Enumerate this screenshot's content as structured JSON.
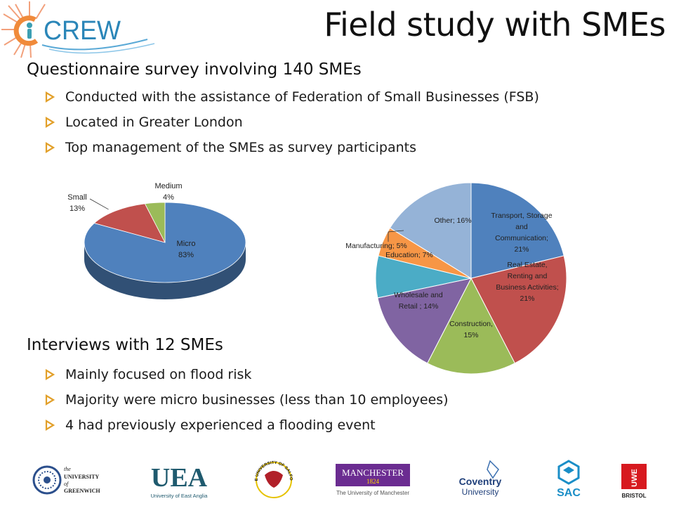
{
  "slide": {
    "title": "Field study with SMEs",
    "logo_text": "CREW"
  },
  "survey": {
    "heading": "Questionnaire survey involving 140 SMEs",
    "bullets": [
      "Conducted with the assistance of Federation of Small Businesses (FSB)",
      "Located in Greater London",
      "Top management of the SMEs as survey participants"
    ]
  },
  "interviews": {
    "heading": "Interviews with 12 SMEs",
    "bullets": [
      "Mainly focused on flood risk",
      "Majority were micro businesses (less than 10 employees)",
      "4 had previously experienced a flooding event"
    ]
  },
  "chart_data": [
    {
      "type": "pie",
      "style": "3d",
      "slices": [
        {
          "label": "Micro",
          "value": 83,
          "display": "83%",
          "color": "#4f81bd"
        },
        {
          "label": "Small",
          "value": 13,
          "display": "13%",
          "color": "#c0504d"
        },
        {
          "label": "Medium",
          "value": 4,
          "display": "4%",
          "color": "#9bbb59"
        }
      ]
    },
    {
      "type": "pie",
      "slices": [
        {
          "label": "Transport, Storage and Communication",
          "lines": [
            "Transport, Storage",
            "and",
            "Communication;",
            "21%"
          ],
          "value": 21,
          "color": "#4f81bd"
        },
        {
          "label": "Real Estate, Renting and Business Activities",
          "lines": [
            "Real Estate,",
            "Renting and",
            "Business Activities;",
            "21%"
          ],
          "value": 21,
          "color": "#c0504d"
        },
        {
          "label": "Construction",
          "lines": [
            "Construction,",
            "15%"
          ],
          "value": 15,
          "color": "#9bbb59"
        },
        {
          "label": "Wholesale and Retail",
          "lines": [
            "Wholesale and",
            "Retail ; 14%"
          ],
          "value": 14,
          "color": "#8064a2"
        },
        {
          "label": "Education",
          "lines": [
            "Education; 7%"
          ],
          "value": 7,
          "color": "#4bacc6"
        },
        {
          "label": "Manufacturing",
          "lines": [
            "Manufacturing; 5%"
          ],
          "value": 5,
          "color": "#f79646"
        },
        {
          "label": "Other",
          "lines": [
            "Other; 16%"
          ],
          "value": 16,
          "color": "#95b3d7"
        }
      ]
    }
  ],
  "partners": [
    {
      "name": "the UNIVERSITY of GREENWICH",
      "lines": [
        "the",
        "UNIVERSITY",
        "of",
        "GREENWICH"
      ]
    },
    {
      "name": "UEA University of East Anglia",
      "lines": [
        "UEA",
        "University of East Anglia"
      ]
    },
    {
      "name": "THE UNIVERSITY OF SALFORD",
      "lines": [
        "THE UNIVERSITY OF SALFORD"
      ]
    },
    {
      "name": "MANCHESTER 1824 The University of Manchester",
      "lines": [
        "MANCHESTER",
        "1824",
        "The University of Manchester"
      ]
    },
    {
      "name": "Coventry University",
      "lines": [
        "Coventry",
        "University"
      ]
    },
    {
      "name": "SAC",
      "lines": [
        "SAC"
      ]
    },
    {
      "name": "UWE BRISTOL",
      "lines": [
        "UWE",
        "BRISTOL"
      ]
    }
  ]
}
